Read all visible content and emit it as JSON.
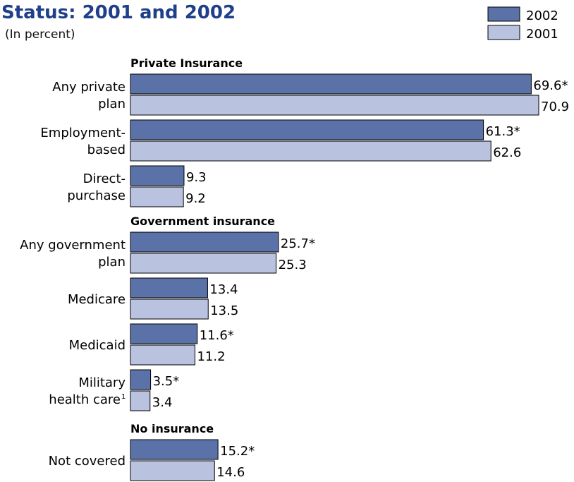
{
  "chart_data": {
    "type": "bar",
    "title": "Status: 2001 and 2002",
    "subtitle": "(In percent)",
    "orientation": "horizontal",
    "legend": {
      "placement": "top-right"
    },
    "series": [
      {
        "name": "2002",
        "color": "#5a72a8"
      },
      {
        "name": "2001",
        "color": "#b9c3e0"
      }
    ],
    "groups": [
      {
        "name": "Private Insurance",
        "categories": [
          {
            "label": [
              "Any private",
              "plan"
            ],
            "values": [
              69.6,
              70.9
            ],
            "labels": [
              "69.6*",
              "70.9"
            ]
          },
          {
            "label": [
              "Employment-",
              "based"
            ],
            "values": [
              61.3,
              62.6
            ],
            "labels": [
              "61.3*",
              "62.6"
            ]
          },
          {
            "label": [
              "Direct-",
              "purchase"
            ],
            "values": [
              9.3,
              9.2
            ],
            "labels": [
              "9.3",
              "9.2"
            ]
          }
        ]
      },
      {
        "name": "Government insurance",
        "categories": [
          {
            "label": [
              "Any government",
              "plan"
            ],
            "values": [
              25.7,
              25.3
            ],
            "labels": [
              "25.7*",
              "25.3"
            ]
          },
          {
            "label": [
              "Medicare"
            ],
            "values": [
              13.4,
              13.5
            ],
            "labels": [
              "13.4",
              "13.5"
            ]
          },
          {
            "label": [
              "Medicaid"
            ],
            "values": [
              11.6,
              11.2
            ],
            "labels": [
              "11.6*",
              "11.2"
            ]
          },
          {
            "label": [
              "Military",
              "health care"
            ],
            "sup": "1",
            "values": [
              3.5,
              3.4
            ],
            "labels": [
              "3.5*",
              "3.4"
            ]
          }
        ]
      },
      {
        "name": "No insurance",
        "categories": [
          {
            "label": [
              "Not covered"
            ],
            "values": [
              15.2,
              14.6
            ],
            "labels": [
              "15.2*",
              "14.6"
            ]
          }
        ]
      }
    ],
    "xlim": [
      0,
      70.9
    ],
    "grid": false
  }
}
